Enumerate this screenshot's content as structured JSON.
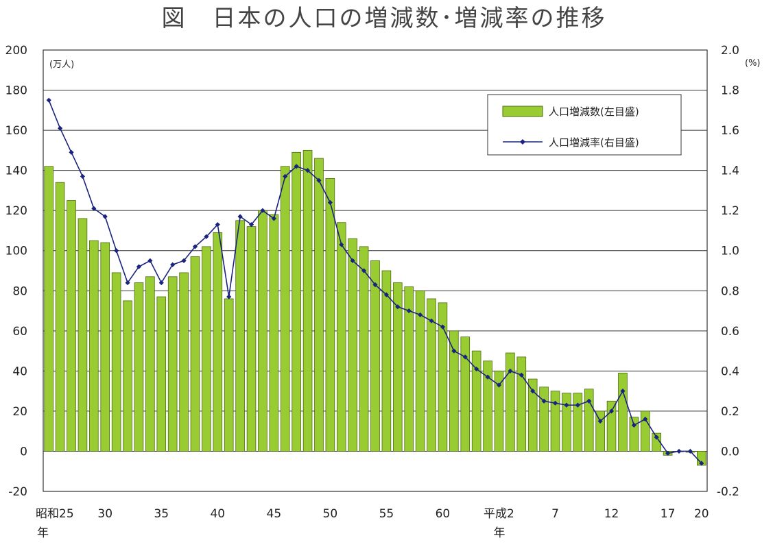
{
  "chart_data": {
    "type": "bar+line",
    "title": "図　日本の人口の増減数･増減率の推移",
    "left_axis": {
      "unit": "(万人)",
      "ylim": [
        -20,
        200
      ],
      "ticks": [
        200,
        180,
        160,
        140,
        120,
        100,
        80,
        60,
        40,
        20,
        0,
        -20
      ]
    },
    "right_axis": {
      "unit": "(%)",
      "ylim": [
        -0.2,
        2.0
      ],
      "ticks": [
        "2.0",
        "1.8",
        "1.6",
        "1.4",
        "1.2",
        "1.0",
        "0.8",
        "0.6",
        "0.4",
        "0.2",
        "0.0",
        "-0.2"
      ]
    },
    "x_tick_labels": [
      {
        "index": 0,
        "label": "昭和25",
        "sub": "年"
      },
      {
        "index": 5,
        "label": "30"
      },
      {
        "index": 10,
        "label": "35"
      },
      {
        "index": 15,
        "label": "40"
      },
      {
        "index": 20,
        "label": "45"
      },
      {
        "index": 25,
        "label": "50"
      },
      {
        "index": 30,
        "label": "55"
      },
      {
        "index": 35,
        "label": "60"
      },
      {
        "index": 40,
        "label": "平成2",
        "sub": "年"
      },
      {
        "index": 45,
        "label": "7"
      },
      {
        "index": 50,
        "label": "12"
      },
      {
        "index": 55,
        "label": "17"
      },
      {
        "index": 58,
        "label": "20"
      }
    ],
    "grid": true,
    "legend_position": "top-right",
    "colors": {
      "bar_fill": "#99cc33",
      "bar_stroke": "#4d6b10",
      "line": "#1a237e"
    },
    "series": [
      {
        "name": "人口増減数(左目盛)",
        "type": "bar",
        "axis": "left",
        "values": [
          142,
          134,
          125,
          116,
          105,
          104,
          89,
          75,
          84,
          87,
          77,
          87,
          89,
          97,
          102,
          109,
          76,
          115,
          112,
          120,
          118,
          142,
          149,
          150,
          146,
          136,
          114,
          106,
          102,
          95,
          90,
          84,
          82,
          80,
          76,
          74,
          60,
          57,
          50,
          45,
          40,
          49,
          47,
          36,
          32,
          30,
          29,
          29,
          31,
          20,
          25,
          39,
          17,
          20,
          9,
          -2,
          0,
          -0.5,
          -7
        ]
      },
      {
        "name": "人口増減率(右目盛)",
        "type": "line",
        "axis": "right",
        "values": [
          1.75,
          1.61,
          1.49,
          1.37,
          1.21,
          1.17,
          1.0,
          0.84,
          0.92,
          0.95,
          0.84,
          0.93,
          0.95,
          1.02,
          1.07,
          1.13,
          0.77,
          1.17,
          1.13,
          1.2,
          1.16,
          1.37,
          1.42,
          1.4,
          1.35,
          1.24,
          1.03,
          0.95,
          0.9,
          0.83,
          0.78,
          0.72,
          0.7,
          0.68,
          0.65,
          0.62,
          0.5,
          0.47,
          0.41,
          0.37,
          0.33,
          0.4,
          0.38,
          0.3,
          0.25,
          0.24,
          0.23,
          0.23,
          0.25,
          0.15,
          0.2,
          0.3,
          0.13,
          0.16,
          0.07,
          -0.01,
          0.0,
          0.0,
          -0.06
        ]
      }
    ]
  }
}
